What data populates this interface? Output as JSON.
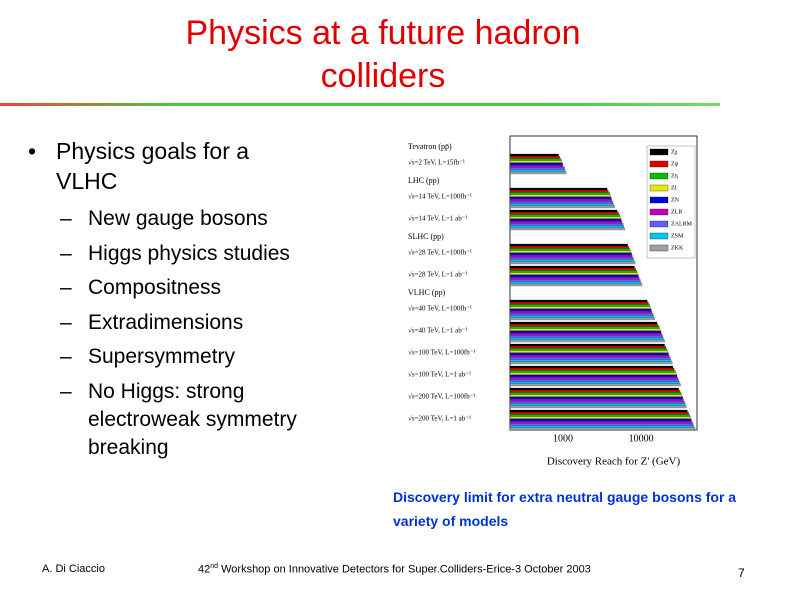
{
  "header": {
    "title_lines": [
      "Physics at a future hadron",
      "colliders"
    ]
  },
  "body": {
    "bullet": [
      "Physics goals for a",
      "VLHC"
    ],
    "subitems": [
      [
        "New gauge bosons"
      ],
      [
        "Higgs physics studies"
      ],
      [
        "Compositness"
      ],
      [
        "Extradimensions"
      ],
      [
        "Supersymmetry"
      ],
      [
        "No Higgs: strong",
        "electroweak symmetry",
        "breaking"
      ]
    ]
  },
  "chart_data": {
    "type": "hbar",
    "xlabel": "Discovery Reach for Z' (GeV)",
    "log_x": true,
    "xlim": [
      210,
      52000
    ],
    "xticks": [
      1000,
      10000
    ],
    "groups": [
      {
        "name": "Tevatron (pp̄)",
        "categories": [
          "√s=2 TeV, L=15fb⁻¹"
        ]
      },
      {
        "name": "LHC (pp)",
        "categories": [
          "√s=14 TeV, L=100fb⁻¹",
          "√s=14 TeV, L=1 ab⁻¹"
        ]
      },
      {
        "name": "SLHC (pp)",
        "categories": [
          "√s=28 TeV, L=100fb⁻¹",
          "√s=28 TeV, L=1 ab⁻¹"
        ]
      },
      {
        "name": "VLHC (pp)",
        "categories": [
          "√s=40 TeV, L=100fb⁻¹",
          "√s=40 TeV, L=1 ab⁻¹",
          "√s=100 TeV, L=100fb⁻¹",
          "√s=100 TeV, L=1 ab⁻¹",
          "√s=200 TeV, L=100fb⁻¹",
          "√s=200 TeV, L=1 ab⁻¹"
        ]
      }
    ],
    "series": [
      {
        "name": "Zχ",
        "color": "#000000",
        "values": [
          880,
          3680,
          4960,
          6720,
          8240,
          12000,
          16000,
          20000,
          25600,
          30400,
          39200
        ]
      },
      {
        "name": "Zψ",
        "color": "#e00000",
        "values": [
          910,
          3820,
          5150,
          6970,
          8550,
          12450,
          16600,
          20750,
          26560,
          31540,
          40670
        ]
      },
      {
        "name": "Zη",
        "color": "#00c000",
        "values": [
          950,
          3960,
          5330,
          7220,
          8860,
          12900,
          17200,
          21500,
          27520,
          32680,
          42140
        ]
      },
      {
        "name": "ZI",
        "color": "#e8e800",
        "values": [
          970,
          4050,
          5460,
          7390,
          9060,
          13200,
          17600,
          22000,
          28160,
          33440,
          43120
        ]
      },
      {
        "name": "ZN",
        "color": "#0000e0",
        "values": [
          990,
          4140,
          5580,
          7560,
          9270,
          13500,
          18000,
          22500,
          28800,
          34200,
          44100
        ]
      },
      {
        "name": "ZLR",
        "color": "#c000c0",
        "values": [
          1010,
          4230,
          5700,
          7730,
          9480,
          13800,
          18400,
          23000,
          29440,
          34960,
          45080
        ]
      },
      {
        "name": "ZALRM",
        "color": "#6060ff",
        "values": [
          1050,
          4370,
          5890,
          7980,
          9790,
          14250,
          19000,
          23750,
          30400,
          36100,
          46550
        ]
      },
      {
        "name": "ZSM",
        "color": "#00c8e8",
        "values": [
          1070,
          4460,
          6010,
          8150,
          9990,
          14550,
          19400,
          24250,
          31040,
          36860,
          47530
        ]
      },
      {
        "name": "ZKK",
        "color": "#a0a0a0",
        "values": [
          1100,
          4600,
          6200,
          8400,
          10300,
          15000,
          20000,
          25000,
          32000,
          38000,
          49000
        ]
      }
    ]
  },
  "caption_lines": [
    "Discovery limit for extra neutral gauge bosons for a",
    "variety of models"
  ],
  "footer": {
    "author": "A. Di Ciaccio",
    "event_number": "42",
    "event_suffix": "nd",
    "event_rest": " Workshop on Innovative Detectors for Super.Colliders-Erice-3 October 2003",
    "page": "7"
  }
}
